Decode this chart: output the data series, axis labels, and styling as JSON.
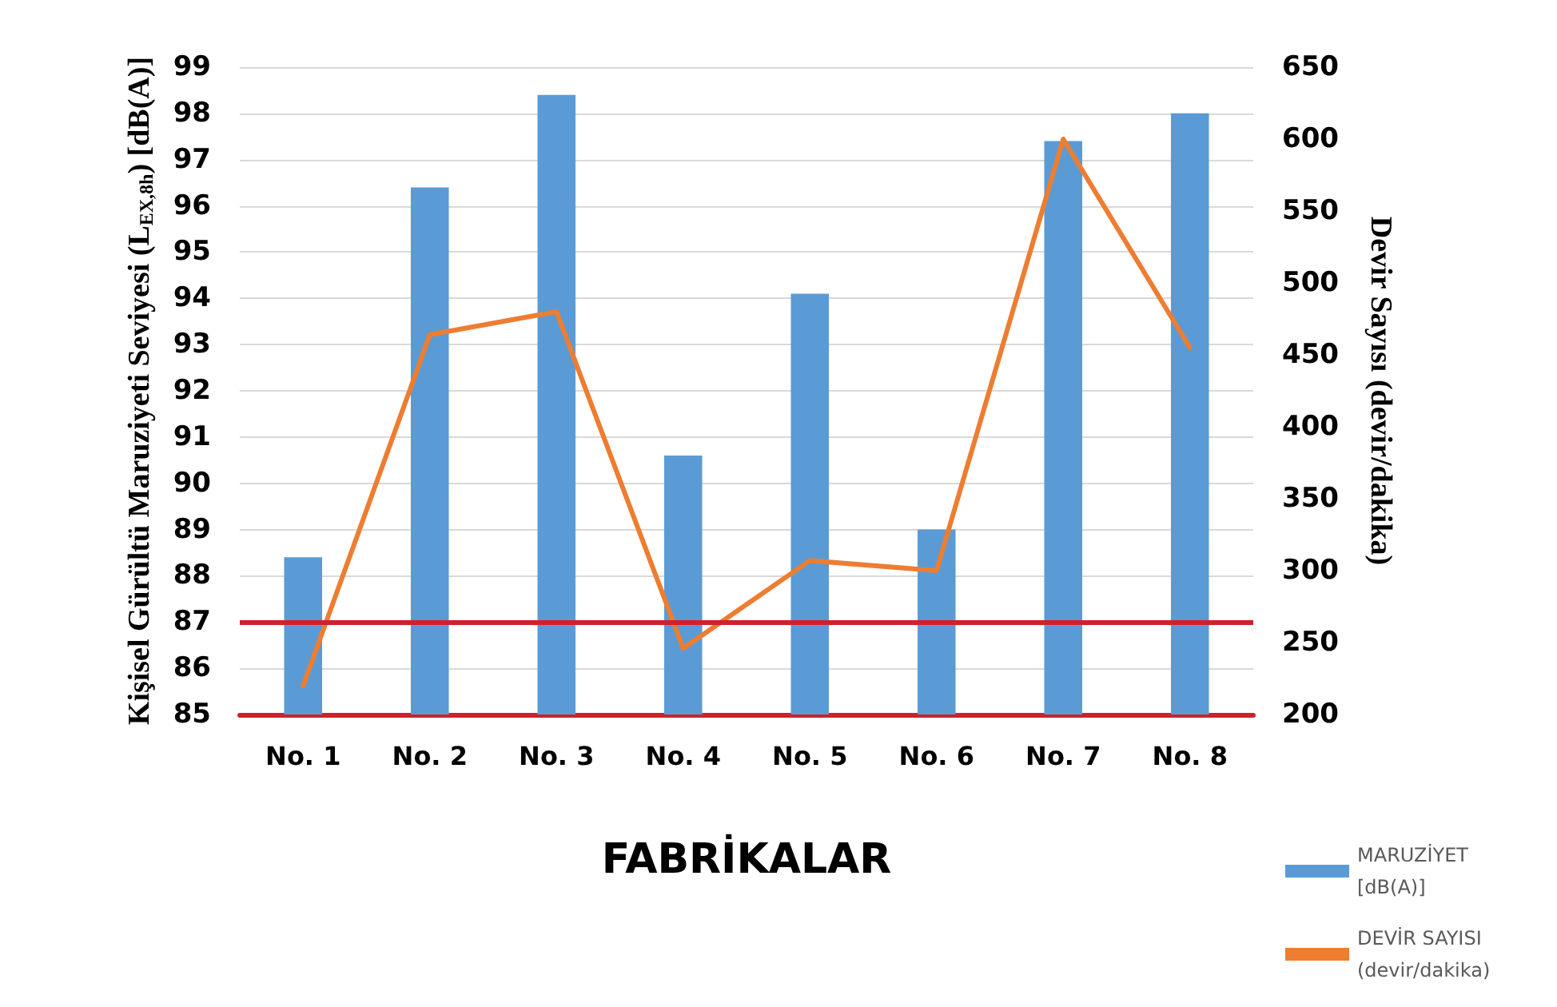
{
  "chart_data": {
    "type": "bar",
    "xlabel": "FABRİKALAR",
    "ylabel": "Kişisel Gürültü Maruziyeti Seviyesi (L$_{EX,8h}$) [dB(A)]",
    "y2label": "Devir Sayısı (devir/dakika)",
    "categories": [
      "No. 1",
      "No. 2",
      "No. 3",
      "No. 4",
      "No. 5",
      "No. 6",
      "No. 7",
      "No. 8"
    ],
    "series": [
      {
        "name": "MARUZİYET [dB(A)]",
        "color": "#5b9bd5",
        "values": [
          88.4,
          96.4,
          98.4,
          90.6,
          94.1,
          89.0,
          97.4,
          98.0
        ]
      },
      {
        "name": "DEVİR SAYISI (devir/dakika)",
        "type": "line",
        "axis": "y2",
        "color": "#ed7d31",
        "values": [
          220,
          464,
          480,
          246,
          307,
          300,
          600,
          455
        ]
      }
    ],
    "ylim": [
      85,
      99
    ],
    "yticks": [
      85,
      86,
      87,
      88,
      89,
      90,
      91,
      92,
      93,
      94,
      95,
      96,
      97,
      98,
      99
    ],
    "y2lim": [
      200,
      650
    ],
    "y2ticks": [
      200,
      250,
      300,
      350,
      400,
      450,
      500,
      550,
      600,
      650
    ],
    "ref_lines": [
      {
        "axis": "y",
        "value": 87,
        "color": "#d0202e"
      }
    ],
    "grid": "y",
    "legend": "bottom right",
    "marker": "none",
    "line_style": "solid"
  }
}
